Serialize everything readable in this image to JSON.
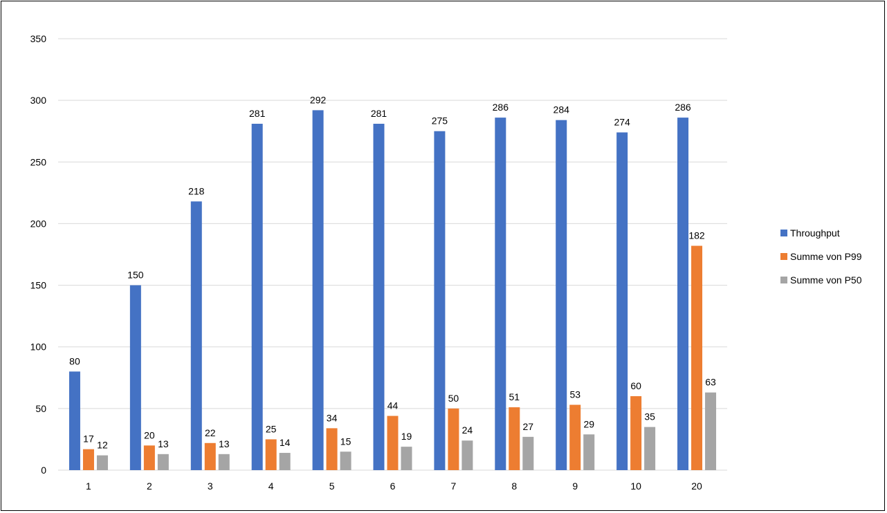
{
  "chart_data": {
    "type": "bar",
    "title": "",
    "xlabel": "",
    "ylabel": "",
    "categories": [
      "1",
      "2",
      "3",
      "4",
      "5",
      "6",
      "7",
      "8",
      "9",
      "10",
      "20"
    ],
    "series": [
      {
        "name": "Throughput",
        "color": "#4472C4",
        "values": [
          80,
          150,
          218,
          281,
          292,
          281,
          275,
          286,
          284,
          274,
          286
        ]
      },
      {
        "name": "Summe von P99",
        "color": "#ED7D31",
        "values": [
          17,
          20,
          22,
          25,
          34,
          44,
          50,
          51,
          53,
          60,
          182
        ]
      },
      {
        "name": "Summe von P50",
        "color": "#A5A5A5",
        "values": [
          12,
          13,
          13,
          14,
          15,
          19,
          24,
          27,
          29,
          35,
          63
        ]
      }
    ],
    "ylim": [
      0,
      350
    ],
    "yticks": [
      0,
      50,
      100,
      150,
      200,
      250,
      300,
      350
    ],
    "grid": true,
    "gridline_color": "#D9D9D9",
    "legend_position": "right",
    "data_labels": true
  }
}
